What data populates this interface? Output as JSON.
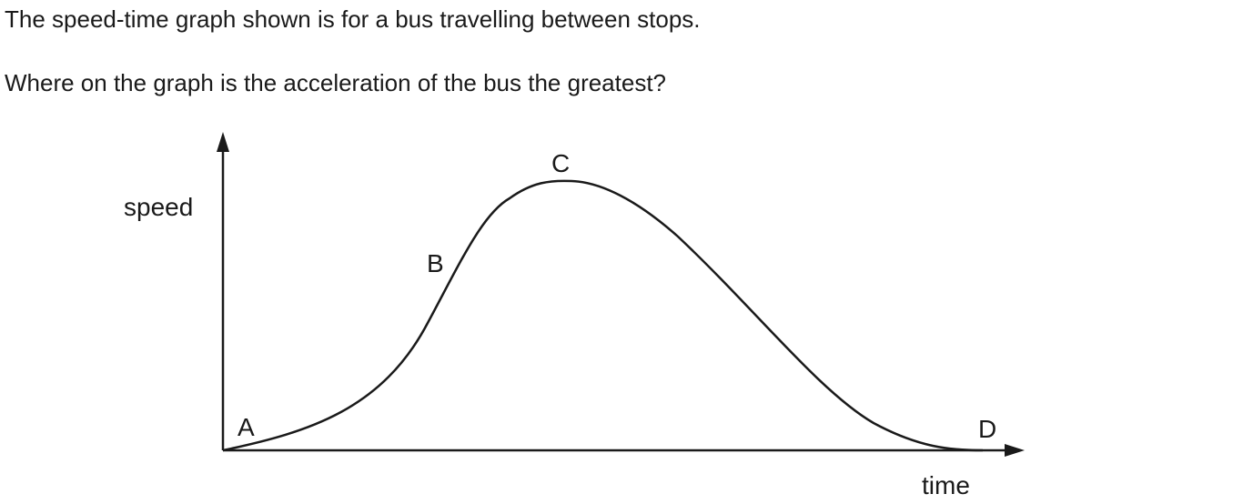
{
  "question": {
    "intro": "The speed-time graph shown is for a bus travelling between stops.",
    "ask": "Where on the graph is the acceleration of the bus the greatest?"
  },
  "graph": {
    "y_axis_label": "speed",
    "x_axis_label": "time",
    "points": [
      {
        "id": "a",
        "label": "A"
      },
      {
        "id": "b",
        "label": "B"
      },
      {
        "id": "c",
        "label": "C"
      },
      {
        "id": "d",
        "label": "D"
      }
    ],
    "line_color": "#1a1a1a"
  }
}
